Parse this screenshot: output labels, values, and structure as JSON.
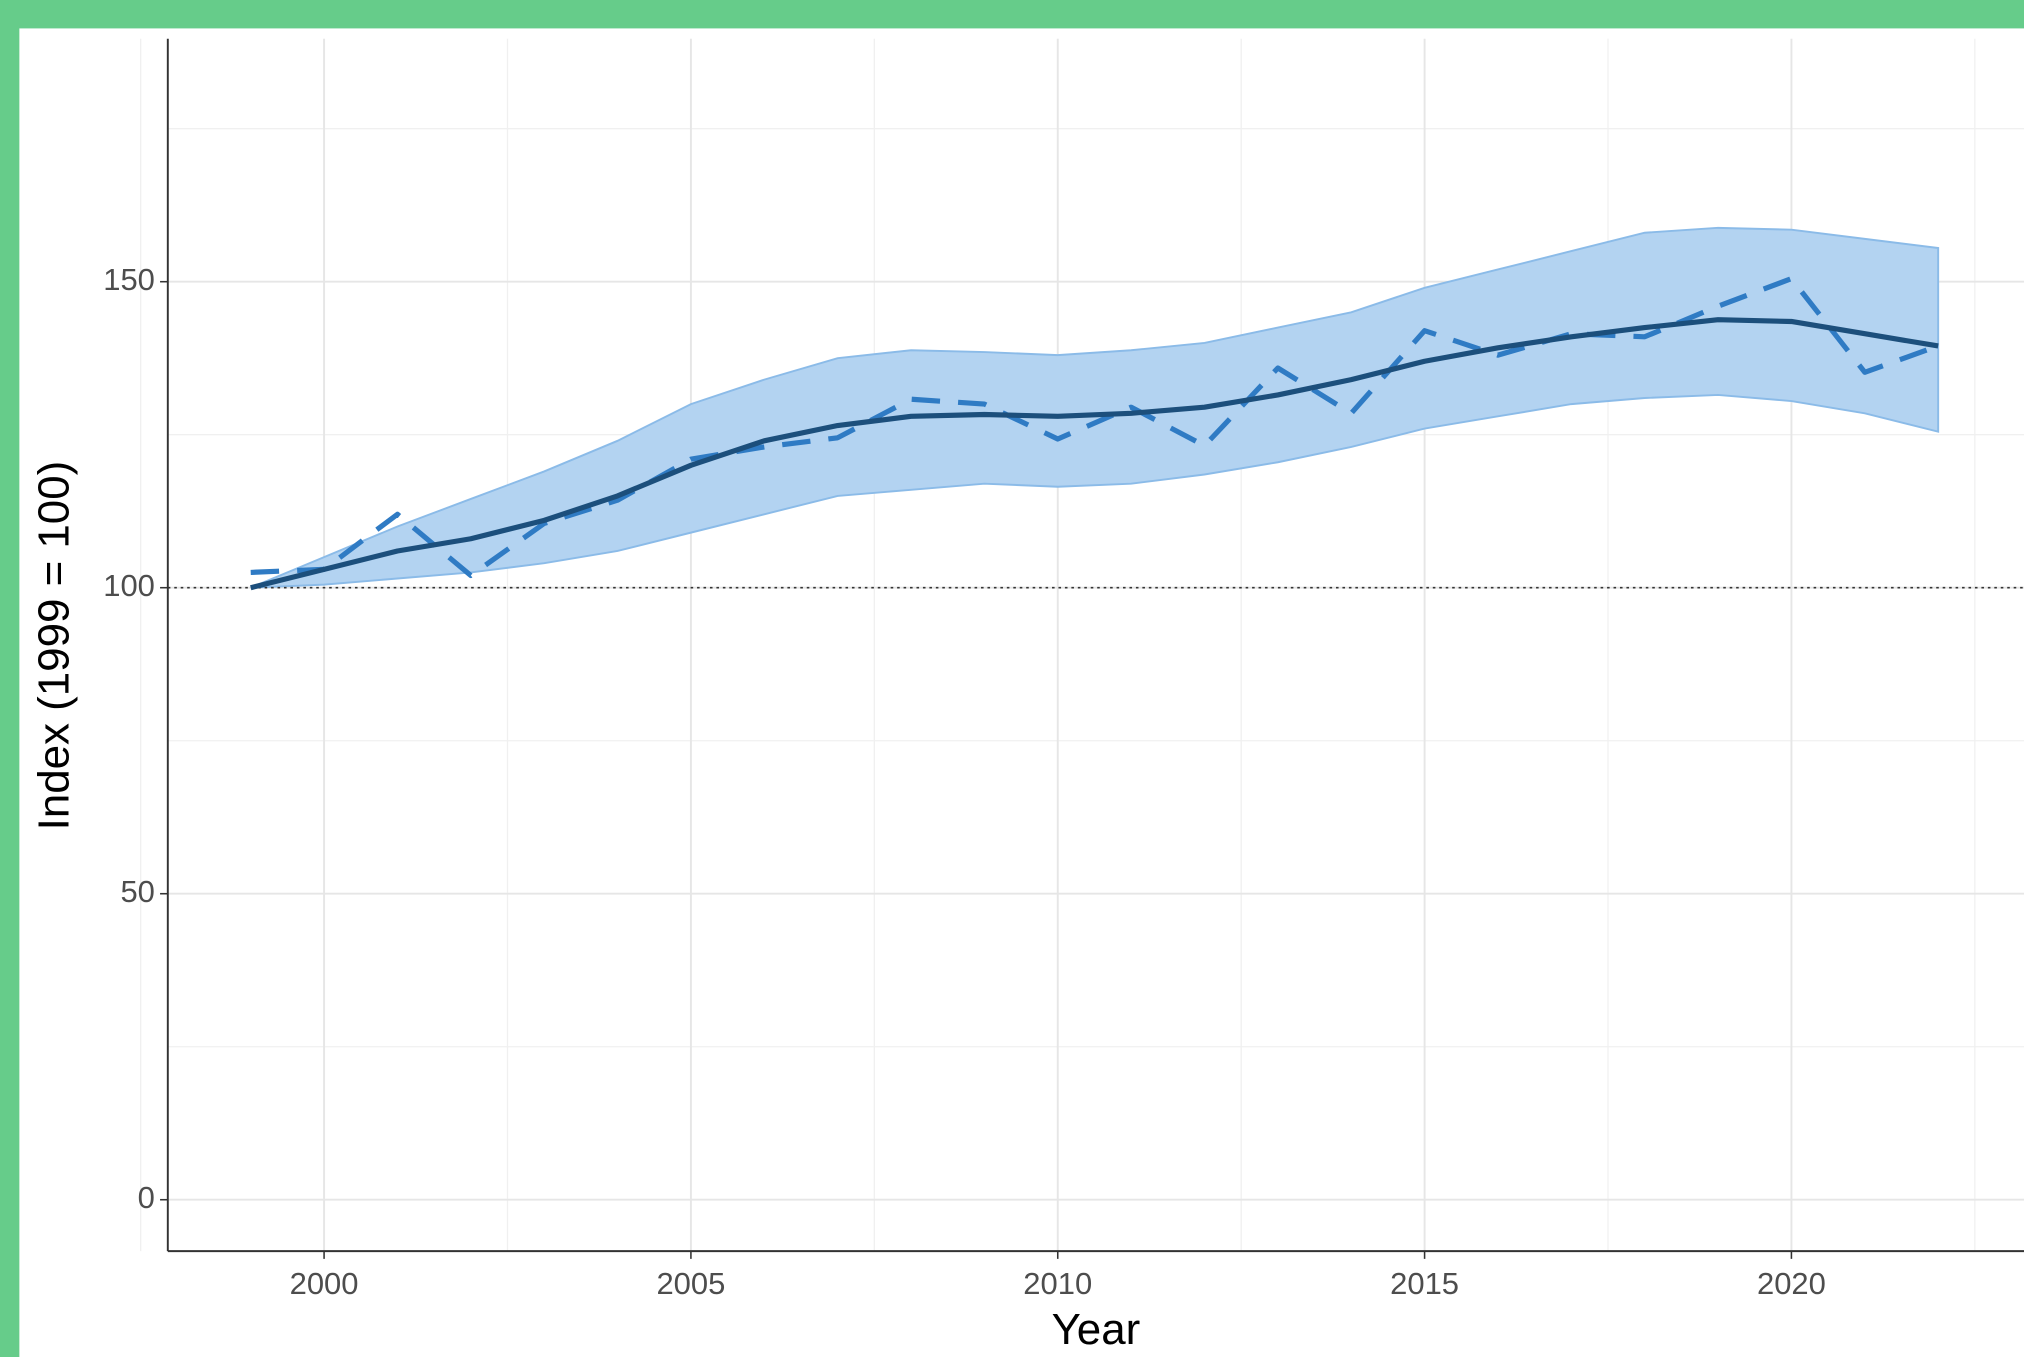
{
  "chart_data": {
    "type": "line",
    "x_label": "Year",
    "y_label": "Index (1999 = 100)",
    "x": [
      1999,
      2000,
      2001,
      2002,
      2003,
      2004,
      2005,
      2006,
      2007,
      2008,
      2009,
      2010,
      2011,
      2012,
      2013,
      2014,
      2015,
      2016,
      2017,
      2018,
      2019,
      2020,
      2021,
      2022
    ],
    "series": [
      {
        "color": "#2f7bc4",
        "dash": true,
        "values": [
          102.5,
          103,
          112,
          102,
          110.5,
          114.3,
          121,
          123,
          124.5,
          130.8,
          130,
          124.3,
          129.5,
          123.2,
          135.9,
          128.5,
          142,
          138,
          141.5,
          141,
          146,
          150.5,
          135.2,
          139.5
        ]
      },
      {
        "color": "#1c4f7c",
        "dash": false,
        "values": [
          100,
          103,
          106,
          108,
          111,
          115,
          120,
          124,
          126.5,
          128,
          128.3,
          128,
          128.5,
          129.5,
          131.5,
          134,
          137,
          139.2,
          141,
          142.5,
          143.8,
          143.5,
          141.5,
          139.5
        ]
      }
    ],
    "band": {
      "color": "#b3d3f1",
      "upper": [
        100,
        105,
        110,
        114.5,
        119,
        124,
        130,
        134,
        137.5,
        138.8,
        138.5,
        138,
        138.8,
        140,
        142.5,
        145,
        149,
        152,
        155,
        158,
        158.8,
        158.5,
        157,
        155.5
      ],
      "lower": [
        100,
        100.5,
        101.5,
        102.5,
        104,
        106,
        109,
        112,
        115,
        116,
        117,
        116.5,
        117,
        118.5,
        120.5,
        123,
        126,
        128,
        130,
        131,
        131.5,
        130.5,
        128.5,
        125.5
      ]
    },
    "hline": 100,
    "xlim": [
      1997.87,
      2023.17
    ],
    "ylim": [
      -8.4,
      189.7
    ],
    "xticks": [
      2000,
      2005,
      2010,
      2015,
      2020
    ],
    "yticks": [
      0,
      50,
      100,
      150
    ],
    "x_minor_ticks": [
      1997.5,
      2002.5,
      2007.5,
      2012.5,
      2017.5,
      2022.5
    ],
    "y_minor_ticks": [
      25,
      75,
      125,
      175
    ],
    "grid": true
  }
}
